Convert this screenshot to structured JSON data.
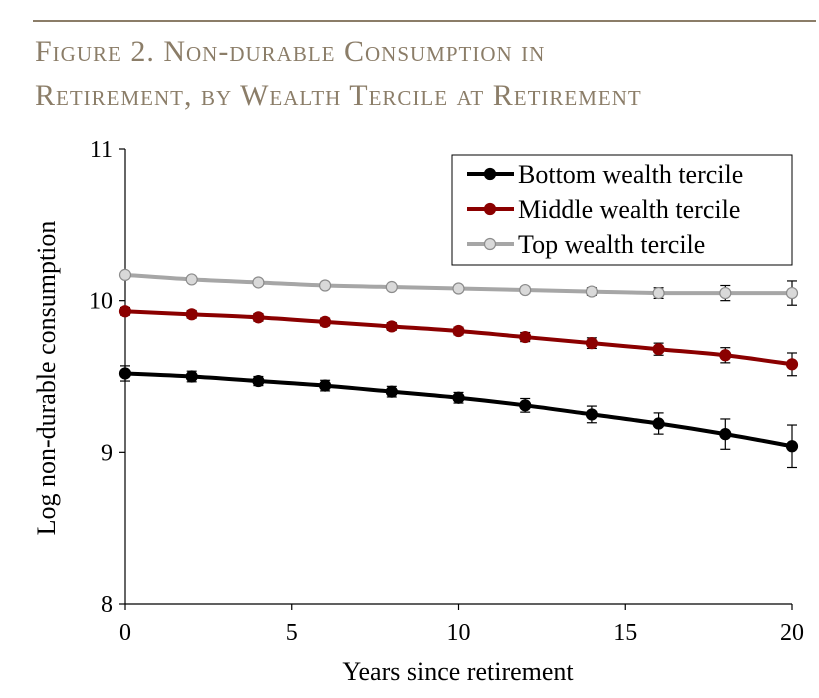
{
  "figure": {
    "title_line1": "Figure 2. Non-durable Consumption in",
    "title_line2": "Retirement, by Wealth Tercile at Retirement"
  },
  "colors": {
    "title": "#8b7d68",
    "bottom": "#000000",
    "middle": "#8b0000",
    "top": "#a6a6a6"
  },
  "chart_data": {
    "type": "line",
    "title": "Non-durable Consumption in Retirement, by Wealth Tercile at Retirement",
    "xlabel": "Years since retirement",
    "ylabel": "Log non-durable consumption",
    "xlim": [
      0,
      20
    ],
    "ylim": [
      8,
      11
    ],
    "xticks": [
      0,
      5,
      10,
      15,
      20
    ],
    "yticks": [
      8,
      9,
      10,
      11
    ],
    "grid": false,
    "legend_position": "top-right",
    "x": [
      0,
      2,
      4,
      6,
      8,
      10,
      12,
      14,
      16,
      18,
      20
    ],
    "series": [
      {
        "name": "Bottom wealth tercile",
        "color": "#000000",
        "marker_fill": "#000000",
        "values": [
          9.52,
          9.5,
          9.47,
          9.44,
          9.4,
          9.36,
          9.31,
          9.25,
          9.19,
          9.12,
          9.04
        ],
        "errors": [
          0.05,
          0.035,
          0.03,
          0.035,
          0.035,
          0.035,
          0.045,
          0.055,
          0.07,
          0.1,
          0.14
        ]
      },
      {
        "name": "Middle wealth tercile",
        "color": "#8b0000",
        "marker_fill": "#8b0000",
        "values": [
          9.93,
          9.91,
          9.89,
          9.86,
          9.83,
          9.8,
          9.76,
          9.72,
          9.68,
          9.64,
          9.58
        ],
        "errors": [
          0.025,
          0.025,
          0.025,
          0.025,
          0.025,
          0.025,
          0.03,
          0.035,
          0.04,
          0.05,
          0.075
        ]
      },
      {
        "name": "Top wealth tercile",
        "color": "#a6a6a6",
        "marker_fill": "#d9d9d9",
        "values": [
          10.17,
          10.14,
          10.12,
          10.1,
          10.09,
          10.08,
          10.07,
          10.06,
          10.05,
          10.05,
          10.05
        ],
        "errors": [
          0.015,
          0.015,
          0.015,
          0.015,
          0.015,
          0.02,
          0.02,
          0.025,
          0.035,
          0.05,
          0.08
        ]
      }
    ]
  }
}
